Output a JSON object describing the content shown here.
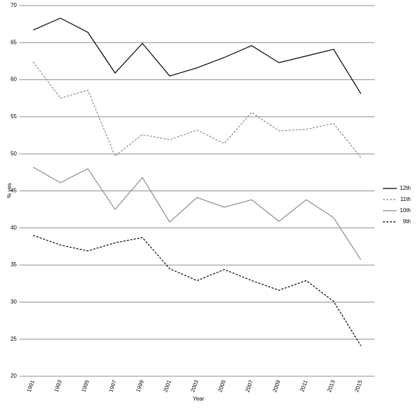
{
  "chart_data": {
    "type": "line",
    "x_label": "Year",
    "y_label": "% yes",
    "categories": [
      "1991",
      "1993",
      "1995",
      "1997",
      "1999",
      "2001",
      "2003",
      "2005",
      "2007",
      "2009",
      "2011",
      "2013",
      "2015"
    ],
    "series": [
      {
        "name": "12th",
        "color": "#000000",
        "dashed": false,
        "values": [
          66.7,
          68.3,
          66.4,
          60.9,
          64.9,
          60.5,
          61.6,
          63.0,
          64.6,
          62.3,
          63.2,
          64.1,
          58.1
        ]
      },
      {
        "name": "11th",
        "color": "#8c8c8c",
        "dashed": true,
        "values": [
          62.4,
          57.5,
          58.6,
          49.7,
          52.6,
          51.9,
          53.2,
          51.4,
          55.6,
          53.1,
          53.3,
          54.1,
          49.5
        ]
      },
      {
        "name": "10th",
        "color": "#8c8c8c",
        "dashed": false,
        "values": [
          48.2,
          46.1,
          48.0,
          42.5,
          46.8,
          40.8,
          44.1,
          42.8,
          43.8,
          40.9,
          43.8,
          41.4,
          35.7
        ]
      },
      {
        "name": "9th",
        "color": "#000000",
        "dashed": true,
        "values": [
          39.0,
          37.7,
          36.9,
          38.0,
          38.7,
          34.5,
          32.9,
          34.4,
          32.9,
          31.6,
          32.9,
          30.1,
          24.1
        ]
      }
    ],
    "ylim": [
      20,
      70
    ],
    "yticks": [
      20,
      25,
      30,
      35,
      40,
      45,
      50,
      55,
      60,
      65,
      70
    ],
    "grid": true,
    "legend": "right"
  }
}
